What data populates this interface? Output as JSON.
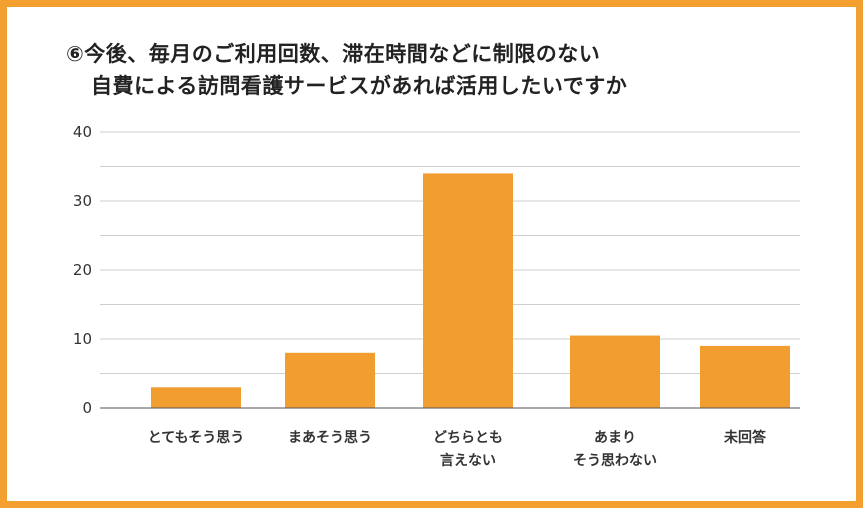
{
  "colors": {
    "frame": "#f4a030",
    "bar": "#f29d30",
    "grid": "#cfcfcf",
    "axis": "#555555",
    "text": "#222222"
  },
  "chart_data": {
    "type": "bar",
    "title": [
      "⑥今後、毎月のご利用回数、滞在時間などに制限のない",
      "自費による訪問看護サービスがあれば活用したいですか"
    ],
    "categories": [
      [
        "とてもそう思う"
      ],
      [
        "まあそう思う"
      ],
      [
        "どちらとも",
        "言えない"
      ],
      [
        "あまり",
        "そう思わない"
      ],
      [
        "未回答"
      ]
    ],
    "values": [
      3,
      8,
      34,
      10.5,
      9
    ],
    "ylim": [
      0,
      40
    ],
    "yticks": [
      0,
      10,
      20,
      30,
      40
    ],
    "grid": true,
    "legend": "none"
  }
}
